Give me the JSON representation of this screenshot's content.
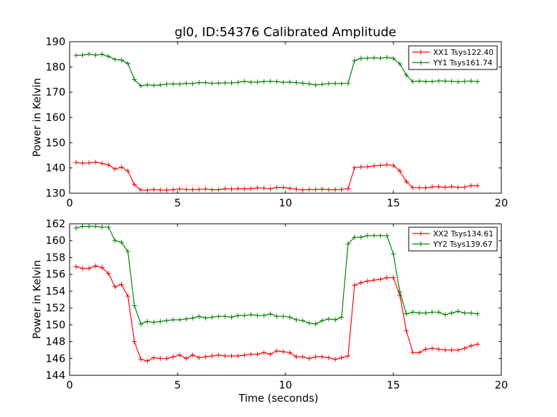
{
  "figure": {
    "title": "gl0, ID:54376 Calibrated Amplitude"
  },
  "chart_data": [
    {
      "type": "line",
      "title": "gl0, ID:54376 Calibrated Amplitude",
      "xlabel": "",
      "ylabel": "Power in Kelvin",
      "xlim": [
        0,
        20
      ],
      "ylim": [
        130,
        190
      ],
      "xticks": [
        "0",
        "5",
        "10",
        "15",
        "20"
      ],
      "yticks": [
        "130",
        "140",
        "150",
        "160",
        "170",
        "180",
        "190"
      ],
      "grid": false,
      "legend_position": "top-right",
      "x": [
        0.3,
        0.6,
        0.9,
        1.2,
        1.5,
        1.8,
        2.1,
        2.4,
        2.7,
        3.0,
        3.3,
        3.6,
        3.9,
        4.2,
        4.5,
        4.8,
        5.1,
        5.4,
        5.7,
        6.0,
        6.3,
        6.6,
        6.9,
        7.2,
        7.5,
        7.8,
        8.1,
        8.4,
        8.7,
        9.0,
        9.3,
        9.6,
        9.9,
        10.2,
        10.5,
        10.8,
        11.1,
        11.4,
        11.7,
        12.0,
        12.3,
        12.6,
        12.9,
        13.2,
        13.5,
        13.8,
        14.1,
        14.4,
        14.7,
        15.0,
        15.3,
        15.6,
        15.9,
        16.2,
        16.5,
        16.8,
        17.1,
        17.4,
        17.7,
        18.0,
        18.3,
        18.6,
        18.9
      ],
      "series": [
        {
          "name": "XX1 Tsys122.40",
          "color": "#ff0000",
          "values": [
            142.2,
            141.9,
            142.0,
            142.3,
            141.8,
            141.2,
            139.6,
            140.3,
            138.8,
            133.4,
            131.3,
            131.2,
            131.5,
            131.3,
            131.2,
            131.4,
            131.7,
            131.5,
            131.4,
            131.5,
            131.7,
            131.4,
            131.4,
            131.8,
            131.6,
            131.8,
            131.7,
            131.8,
            132.1,
            132.0,
            131.7,
            132.3,
            132.3,
            131.9,
            131.6,
            131.3,
            131.5,
            131.5,
            131.6,
            131.4,
            131.4,
            131.5,
            131.8,
            140.1,
            140.4,
            140.5,
            140.8,
            141.0,
            141.3,
            141.0,
            138.8,
            134.6,
            132.2,
            132.2,
            132.1,
            132.5,
            132.6,
            132.3,
            132.6,
            132.3,
            132.4,
            133.0,
            133.0
          ]
        },
        {
          "name": "YY1 Tsys161.74",
          "color": "#008000",
          "values": [
            184.6,
            184.7,
            185.1,
            184.7,
            185.0,
            184.2,
            183.0,
            182.7,
            181.4,
            175.0,
            172.5,
            172.9,
            172.7,
            172.9,
            173.2,
            173.3,
            173.2,
            173.5,
            173.4,
            173.8,
            173.8,
            173.5,
            173.6,
            173.7,
            173.7,
            173.9,
            174.3,
            174.0,
            174.0,
            174.2,
            174.3,
            174.2,
            173.9,
            174.0,
            173.8,
            173.6,
            173.3,
            172.9,
            173.1,
            173.4,
            173.5,
            173.4,
            173.5,
            182.5,
            183.4,
            183.5,
            183.6,
            183.5,
            183.8,
            183.4,
            181.2,
            176.8,
            174.2,
            174.4,
            174.2,
            174.2,
            174.5,
            174.4,
            174.3,
            174.1,
            174.3,
            174.4,
            174.2
          ]
        }
      ]
    },
    {
      "type": "line",
      "title": "",
      "xlabel": "Time (seconds)",
      "ylabel": "Power in Kelvin",
      "xlim": [
        0,
        20
      ],
      "ylim": [
        144,
        162
      ],
      "xticks": [
        "0",
        "5",
        "10",
        "15",
        "20"
      ],
      "yticks": [
        "144",
        "146",
        "148",
        "150",
        "152",
        "154",
        "156",
        "158",
        "160",
        "162"
      ],
      "grid": false,
      "legend_position": "top-right",
      "x": [
        0.3,
        0.6,
        0.9,
        1.2,
        1.5,
        1.8,
        2.1,
        2.4,
        2.7,
        3.0,
        3.3,
        3.6,
        3.9,
        4.2,
        4.5,
        4.8,
        5.1,
        5.4,
        5.7,
        6.0,
        6.3,
        6.6,
        6.9,
        7.2,
        7.5,
        7.8,
        8.1,
        8.4,
        8.7,
        9.0,
        9.3,
        9.6,
        9.9,
        10.2,
        10.5,
        10.8,
        11.1,
        11.4,
        11.7,
        12.0,
        12.3,
        12.6,
        12.9,
        13.2,
        13.5,
        13.8,
        14.1,
        14.4,
        14.7,
        15.0,
        15.3,
        15.6,
        15.9,
        16.2,
        16.5,
        16.8,
        17.1,
        17.4,
        17.7,
        18.0,
        18.3,
        18.6,
        18.9
      ],
      "series": [
        {
          "name": "XX2 Tsys134.61",
          "color": "#ff0000",
          "values": [
            156.9,
            156.7,
            156.7,
            157.0,
            156.8,
            156.1,
            154.5,
            154.8,
            153.4,
            148.0,
            145.9,
            145.7,
            146.1,
            146.0,
            146.0,
            146.2,
            146.4,
            146.0,
            146.4,
            146.1,
            146.2,
            146.3,
            146.4,
            146.3,
            146.3,
            146.3,
            146.4,
            146.5,
            146.5,
            146.7,
            146.5,
            146.9,
            146.8,
            146.7,
            146.2,
            146.2,
            146.0,
            146.2,
            146.2,
            146.1,
            145.9,
            146.1,
            146.3,
            154.7,
            155.0,
            155.2,
            155.3,
            155.4,
            155.6,
            155.6,
            153.5,
            149.3,
            146.7,
            146.7,
            147.1,
            147.2,
            147.1,
            147.0,
            147.0,
            147.0,
            147.2,
            147.5,
            147.7
          ]
        },
        {
          "name": "YY2 Tsys139.67",
          "color": "#008000",
          "values": [
            161.5,
            161.7,
            161.7,
            161.7,
            161.6,
            161.6,
            160.0,
            159.8,
            158.7,
            152.3,
            150.1,
            150.4,
            150.3,
            150.4,
            150.5,
            150.6,
            150.6,
            150.7,
            150.8,
            151.0,
            150.8,
            150.9,
            151.0,
            151.0,
            150.9,
            151.1,
            151.1,
            151.2,
            151.1,
            151.1,
            151.3,
            151.0,
            151.0,
            150.9,
            150.6,
            150.5,
            150.2,
            150.1,
            150.5,
            150.7,
            150.6,
            150.9,
            159.6,
            160.4,
            160.4,
            160.6,
            160.6,
            160.6,
            160.6,
            158.4,
            153.9,
            151.3,
            151.5,
            151.4,
            151.4,
            151.5,
            151.5,
            151.2,
            151.4,
            151.6,
            151.4,
            151.4,
            151.3
          ]
        }
      ]
    }
  ]
}
